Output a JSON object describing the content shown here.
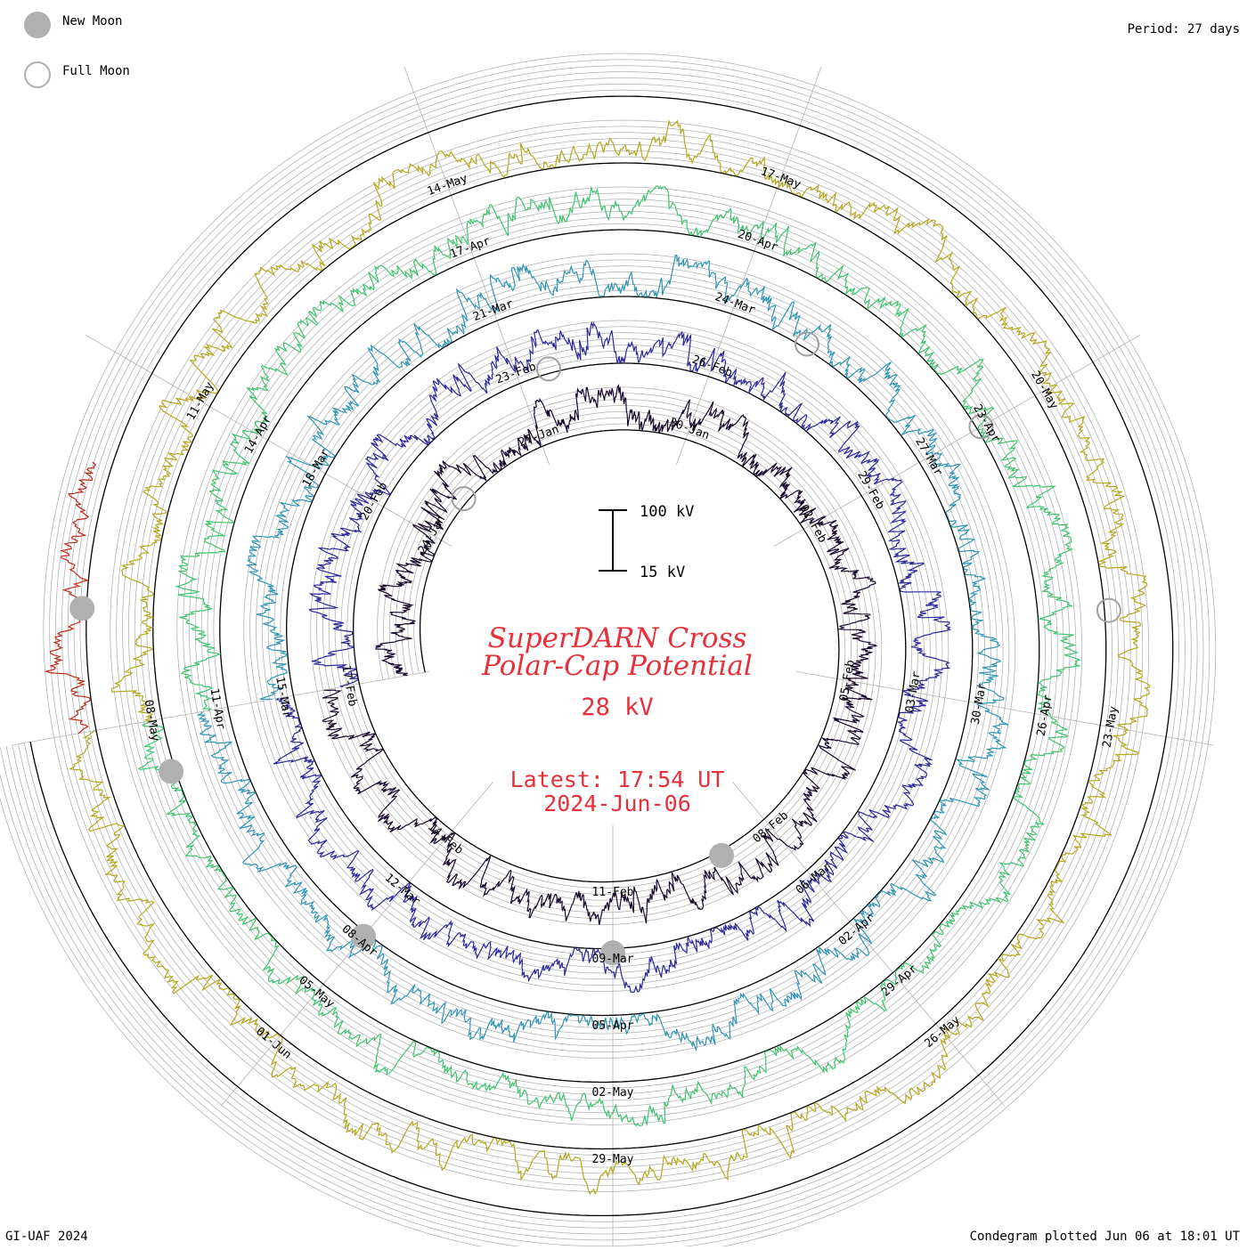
{
  "legend": {
    "new_moon_label": "New Moon",
    "full_moon_label": "Full Moon"
  },
  "period_label": "Period: 27 days",
  "scale_bar": {
    "top_label": "100 kV",
    "bottom_label": "15 kV"
  },
  "title": {
    "line1": "SuperDARN Cross",
    "line2": "Polar-Cap Potential",
    "value": "28 kV"
  },
  "latest": {
    "line1": "Latest: 17:54 UT",
    "line2": "2024-Jun-06"
  },
  "footer": {
    "left": "GI-UAF 2024",
    "right": "Condegram plotted Jun 06 at 18:01 UT"
  },
  "colors": {
    "text_red": "#e8303a",
    "moon_gray": "#b0b0b0",
    "grid": "#b4b4b4",
    "axis": "#000000"
  },
  "chart_data": {
    "type": "line",
    "projection": "spiral condegram, one turn per 27-day period, value plotted radially",
    "y_unit": "kV",
    "ylim": [
      15,
      100
    ],
    "series": [
      {
        "color": "#1a0a2e",
        "start": "21-Jan",
        "dates": [
          "24-Jan",
          "27-Jan",
          "30-Jan",
          "02-Feb",
          "05-Feb",
          "08-Feb",
          "11-Feb",
          "14-Feb",
          "17-Feb"
        ]
      },
      {
        "color": "#2c2a9a",
        "start": "17-Feb",
        "dates": [
          "20-Feb",
          "23-Feb",
          "26-Feb",
          "29-Feb",
          "03-Mar",
          "06-Mar",
          "09-Mar",
          "12-Mar",
          "15-Mar"
        ]
      },
      {
        "color": "#2f95b4",
        "start": "15-Mar",
        "dates": [
          "18-Mar",
          "21-Mar",
          "24-Mar",
          "27-Mar",
          "30-Mar",
          "02-Apr",
          "05-Apr",
          "08-Apr",
          "11-Apr"
        ]
      },
      {
        "color": "#3ec46e",
        "start": "11-Apr",
        "dates": [
          "14-Apr",
          "17-Apr",
          "20-Apr",
          "23-Apr",
          "26-Apr",
          "29-Apr",
          "02-May",
          "05-May",
          "08-May"
        ]
      },
      {
        "color": "#b4a81c",
        "start": "08-May",
        "dates": [
          "11-May",
          "14-May",
          "17-May",
          "20-May",
          "23-May",
          "26-May",
          "29-May",
          "01-Jun"
        ]
      },
      {
        "color": "#c02818",
        "start": "01-Jun",
        "dates": []
      }
    ],
    "new_moon_dates": [
      "08-Feb",
      "09-Mar",
      "08-Apr",
      "08-May",
      "06-Jun"
    ],
    "full_moon_dates": [
      "25-Jan",
      "24-Feb",
      "25-Mar",
      "23-Apr",
      "23-May"
    ]
  }
}
